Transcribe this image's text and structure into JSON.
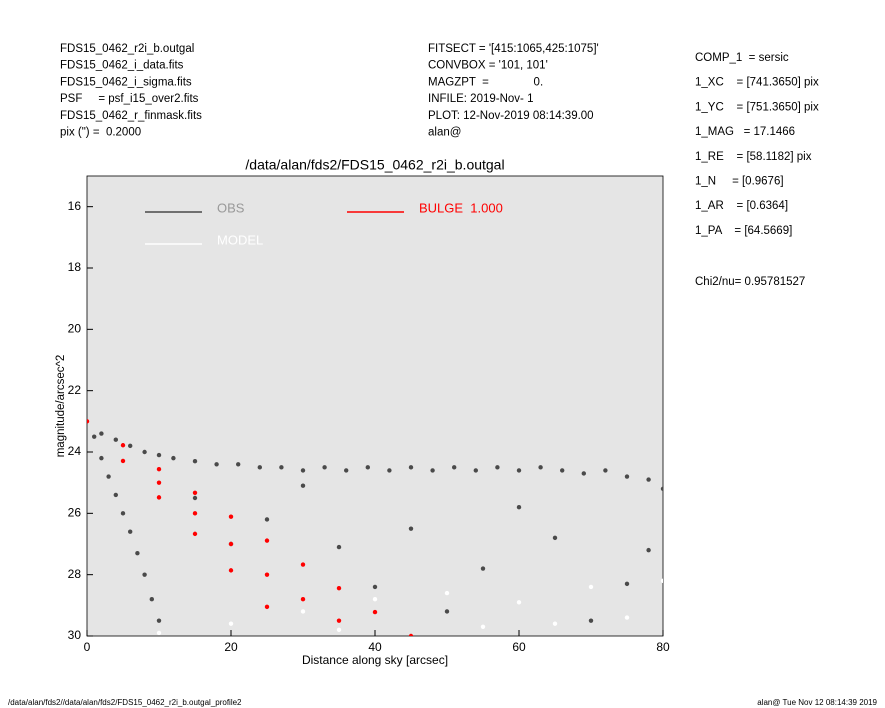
{
  "header": {
    "left": [
      "FDS15_0462_r2i_b.outgal",
      "FDS15_0462_i_data.fits",
      "FDS15_0462_i_sigma.fits",
      "PSF     = psf_i15_over2.fits",
      "FDS15_0462_r_finmask.fits",
      "pix (\") =  0.2000"
    ],
    "middle": [
      "FITSECT = '[415:1065,425:1075]'",
      "CONVBOX = '101, 101'",
      "MAGZPT  =              0.",
      "INFILE: 2019-Nov- 1",
      "PLOT: 12-Nov-2019 08:14:39.00",
      "alan@"
    ],
    "right": [
      "COMP_1  = sersic",
      "1_XC    = [741.3650] pix",
      "1_YC    = [751.3650] pix",
      "1_MAG   = 17.1466",
      "1_RE    = [58.1182] pix",
      "1_N     = [0.9676]",
      "1_AR    = [0.6364]",
      "1_PA    = [64.5669]"
    ],
    "chi2": "Chi2/nu=      0.95781527"
  },
  "chart_data": {
    "type": "scatter",
    "title": "/data/alan/fds2/FDS15_0462_r2i_b.outgal",
    "x_label": "Distance along sky [arcsec]",
    "y_label": "magnitude/arcsec^2",
    "xlim": [
      0,
      80
    ],
    "ylim": [
      30,
      15
    ],
    "xticks": [
      0,
      20,
      40,
      60,
      80
    ],
    "yticks": [
      16,
      18,
      20,
      22,
      24,
      26,
      28,
      30
    ],
    "background": "#e5e5e5",
    "series": [
      {
        "name": "OBS",
        "color": "#4a4a4a",
        "x": [
          2,
          4,
          6,
          8,
          10,
          12,
          15,
          18,
          21,
          24,
          27,
          30,
          33,
          36,
          39,
          42,
          45,
          48,
          51,
          54,
          57,
          60,
          63,
          66,
          69,
          72,
          75,
          78,
          80,
          1,
          2,
          3,
          4,
          5,
          6,
          7,
          8,
          9,
          10,
          15,
          25,
          35,
          45,
          55,
          65,
          75,
          20,
          50,
          70,
          30,
          60,
          40,
          78
        ],
        "values": [
          23.4,
          23.6,
          23.8,
          24.0,
          24.1,
          24.2,
          24.3,
          24.4,
          24.4,
          24.5,
          24.5,
          24.6,
          24.5,
          24.6,
          24.5,
          24.6,
          24.5,
          24.6,
          24.5,
          24.6,
          24.5,
          24.6,
          24.5,
          24.6,
          24.7,
          24.6,
          24.8,
          24.9,
          25.2,
          23.5,
          24.2,
          24.8,
          25.4,
          26.0,
          26.6,
          27.3,
          28.0,
          28.8,
          29.5,
          25.5,
          26.2,
          27.1,
          26.5,
          27.8,
          26.8,
          28.3,
          27.0,
          29.2,
          29.5,
          25.1,
          25.8,
          28.4,
          27.2
        ]
      },
      {
        "name": "MODEL",
        "color": "#ffffff",
        "x": [
          10,
          20,
          30,
          40,
          50,
          60,
          70,
          80,
          35,
          55,
          65,
          75
        ],
        "values": [
          29.9,
          29.6,
          29.2,
          28.8,
          28.6,
          28.9,
          28.4,
          28.2,
          29.8,
          29.7,
          29.6,
          29.4
        ]
      },
      {
        "name": "BULGE  1.000",
        "color": "#ff0000",
        "x": [
          0,
          5,
          5,
          10,
          10,
          10,
          15,
          15,
          15,
          20,
          20,
          20,
          25,
          25,
          25,
          30,
          30,
          35,
          35,
          40,
          45
        ],
        "values": [
          23.0,
          23.78,
          24.29,
          24.56,
          25.48,
          25.0,
          25.33,
          26.67,
          26.0,
          26.11,
          27.86,
          27.0,
          26.89,
          29.05,
          28.0,
          27.67,
          28.8,
          28.44,
          29.5,
          29.22,
          30.0
        ]
      }
    ]
  },
  "footer": {
    "left": "/data/alan/fds2//data/alan/fds2/FDS15_0462_r2i_b.outgal_profile2",
    "right": "alan@  Tue Nov 12 08:14:39 2019"
  }
}
